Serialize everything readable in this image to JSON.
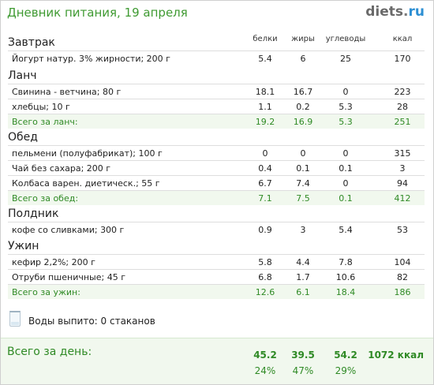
{
  "header": {
    "title": "Дневник питания, 19 апреля",
    "logo": {
      "name": "diets",
      "dot": ".",
      "tld": "ru"
    }
  },
  "columns": {
    "protein": "белки",
    "fat": "жиры",
    "carbs": "углеводы",
    "kcal": "ккал"
  },
  "meals": [
    {
      "title": "Завтрак",
      "items": [
        {
          "name": "Йогурт натур. 3% жирности; 200 г",
          "protein": "5.4",
          "fat": "6",
          "carbs": "25",
          "kcal": "170"
        }
      ]
    },
    {
      "title": "Ланч",
      "items": [
        {
          "name": "Свинина - ветчина; 80 г",
          "protein": "18.1",
          "fat": "16.7",
          "carbs": "0",
          "kcal": "223"
        },
        {
          "name": "хлебцы; 10 г",
          "protein": "1.1",
          "fat": "0.2",
          "carbs": "5.3",
          "kcal": "28"
        }
      ],
      "total": {
        "label": "Всего за ланч:",
        "protein": "19.2",
        "fat": "16.9",
        "carbs": "5.3",
        "kcal": "251"
      }
    },
    {
      "title": "Обед",
      "items": [
        {
          "name": "пельмени (полуфабрикат); 100 г",
          "protein": "0",
          "fat": "0",
          "carbs": "0",
          "kcal": "315"
        },
        {
          "name": "Чай без сахара; 200 г",
          "protein": "0.4",
          "fat": "0.1",
          "carbs": "0.1",
          "kcal": "3"
        },
        {
          "name": "Колбаса варен. диетическ.; 55 г",
          "protein": "6.7",
          "fat": "7.4",
          "carbs": "0",
          "kcal": "94"
        }
      ],
      "total": {
        "label": "Всего за обед:",
        "protein": "7.1",
        "fat": "7.5",
        "carbs": "0.1",
        "kcal": "412"
      }
    },
    {
      "title": "Полдник",
      "items": [
        {
          "name": "кофе со сливками; 300 г",
          "protein": "0.9",
          "fat": "3",
          "carbs": "5.4",
          "kcal": "53"
        }
      ]
    },
    {
      "title": "Ужин",
      "items": [
        {
          "name": "кефир 2,2%; 200 г",
          "protein": "5.8",
          "fat": "4.4",
          "carbs": "7.8",
          "kcal": "104"
        },
        {
          "name": "Отруби пшеничные; 45 г",
          "protein": "6.8",
          "fat": "1.7",
          "carbs": "10.6",
          "kcal": "82"
        }
      ],
      "total": {
        "label": "Всего за ужин:",
        "protein": "12.6",
        "fat": "6.1",
        "carbs": "18.4",
        "kcal": "186"
      }
    }
  ],
  "water": {
    "text": "Воды выпито: 0 стаканов",
    "icon": "glass-icon"
  },
  "day_total": {
    "label": "Всего за день:",
    "protein": "45.2",
    "fat": "39.5",
    "carbs": "54.2",
    "kcal": "1072 ккал",
    "protein_pct": "24%",
    "fat_pct": "47%",
    "carbs_pct": "29%"
  },
  "colors": {
    "accent_green": "#2f8a25",
    "title_green": "#3f9a32",
    "logo_blue": "#2d8fd3",
    "total_bg": "#f1f8ee"
  }
}
